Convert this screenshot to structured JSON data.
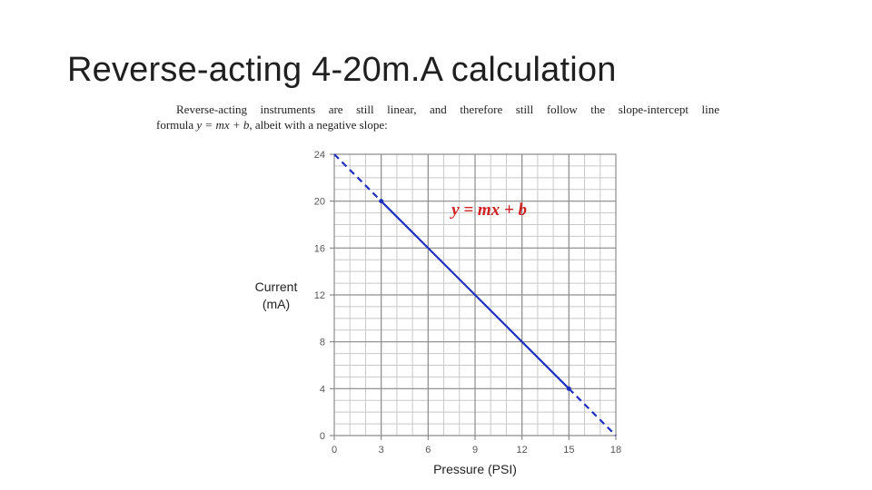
{
  "slide": {
    "title": "Reverse-acting 4-20m.A calculation"
  },
  "intro": {
    "line1": "Reverse-acting instruments are still linear, and therefore still follow the slope-intercept line",
    "line2_pre": "formula ",
    "line2_formula": "y = mx + b",
    "line2_post": ", albeit with a negative slope:"
  },
  "chart_data": {
    "type": "line",
    "x_label": "Pressure (PSI)",
    "y_label_line1": "Current",
    "y_label_line2": "(mA)",
    "xlim": [
      0,
      18
    ],
    "ylim": [
      0,
      24
    ],
    "x_ticks": [
      0,
      3,
      6,
      9,
      12,
      15,
      18
    ],
    "y_ticks": [
      0,
      4,
      8,
      12,
      16,
      20,
      24
    ],
    "x_tick_labels": [
      "0",
      "3",
      "6",
      "9",
      "12",
      "15",
      "18"
    ],
    "y_tick_labels": [
      "0",
      "4",
      "8",
      "12",
      "16",
      "20",
      "24"
    ],
    "grid": true,
    "series": [
      {
        "x": [
          3,
          15
        ],
        "y": [
          20,
          4
        ],
        "style": "solid"
      },
      {
        "x": [
          0,
          3
        ],
        "y": [
          24,
          20
        ],
        "style": "dashed"
      },
      {
        "x": [
          15,
          18
        ],
        "y": [
          4,
          0
        ],
        "style": "dashed"
      }
    ],
    "annotation": "y = mx + b",
    "annotation_at": {
      "x": 7.5,
      "y": 18.8
    },
    "line_color": "#1f2fbf",
    "annotation_color": "#d02020"
  }
}
